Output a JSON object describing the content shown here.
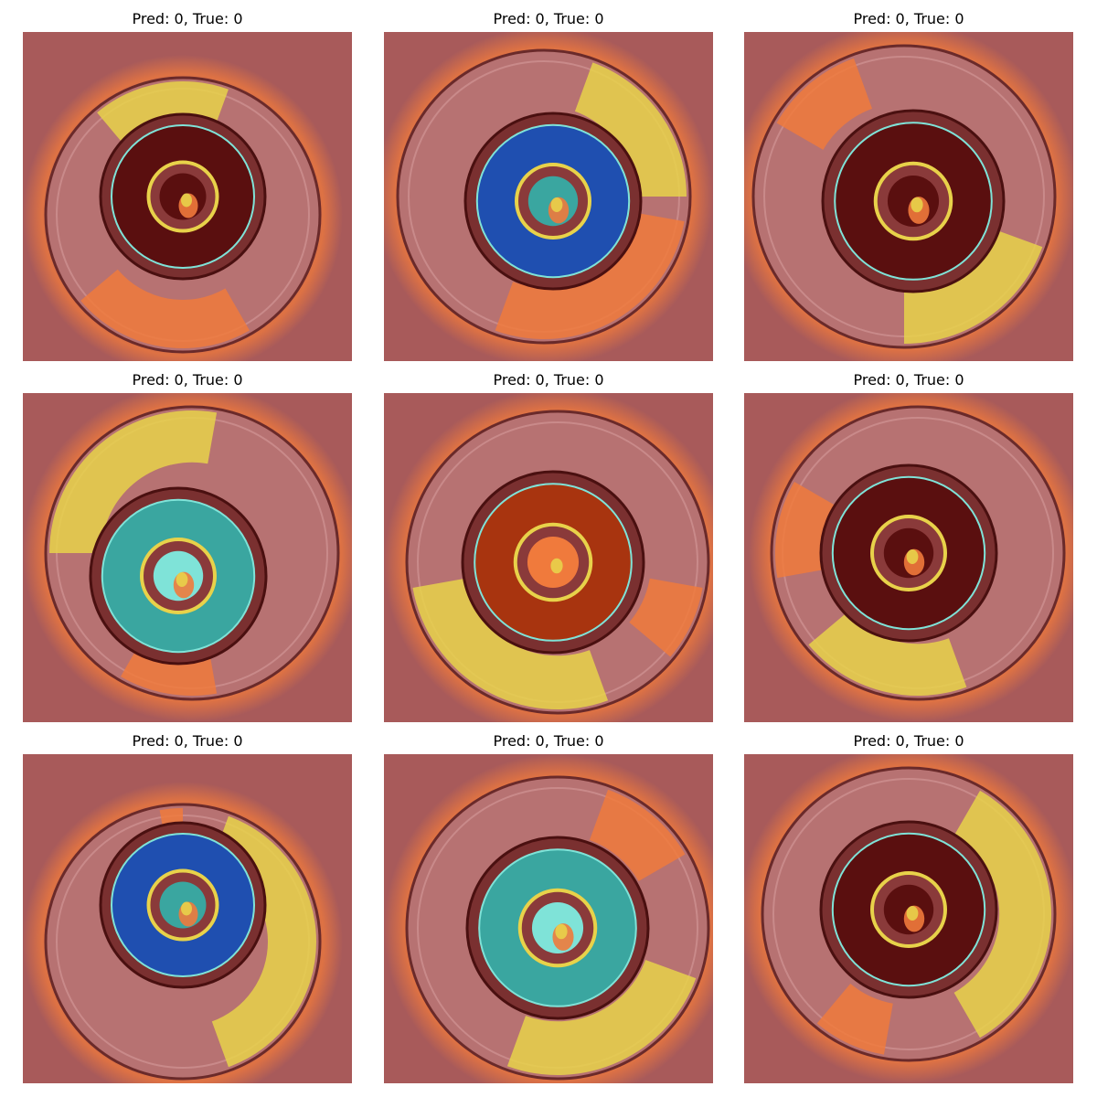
{
  "figure": {
    "background": "#ffffff",
    "panels": [
      {
        "title": "Pred: 0, True: 0",
        "variant": "red-core"
      },
      {
        "title": "Pred: 0, True: 0",
        "variant": "blue-ring"
      },
      {
        "title": "Pred: 0, True: 0",
        "variant": "red-core"
      },
      {
        "title": "Pred: 0, True: 0",
        "variant": "teal-ring"
      },
      {
        "title": "Pred: 0, True: 0",
        "variant": "orange-ring"
      },
      {
        "title": "Pred: 0, True: 0",
        "variant": "red-core"
      },
      {
        "title": "Pred: 0, True: 0",
        "variant": "blue-ring"
      },
      {
        "title": "Pred: 0, True: 0",
        "variant": "teal-ring"
      },
      {
        "title": "Pred: 0, True: 0",
        "variant": "red-core"
      }
    ],
    "colors": {
      "background_overlay": "#a85a5a",
      "outer_ring": "#b77272",
      "dark_core": "#5a0f0f",
      "heat_yellow": "#e8d24a",
      "heat_orange": "#f07a3c",
      "heat_blue": "#1f4fb0",
      "heat_teal": "#3aa6a0",
      "heat_cyan": "#7fe3d8"
    }
  }
}
